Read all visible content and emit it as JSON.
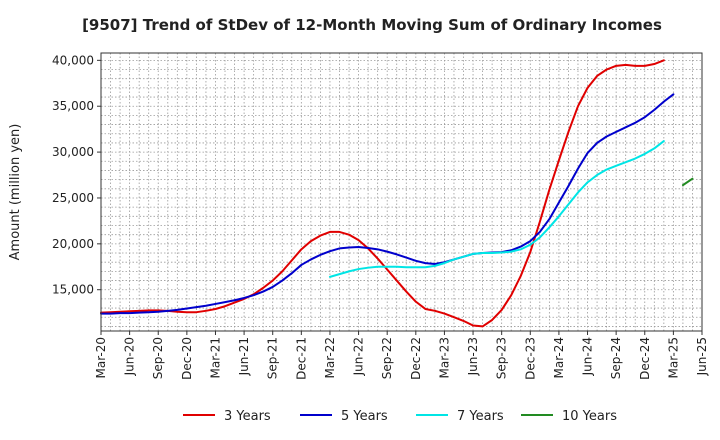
{
  "chart_data": {
    "type": "line",
    "title": "[9507]  Trend of StDev of 12-Month Moving Sum of Ordinary Incomes",
    "xlabel": "",
    "ylabel": "Amount (million yen)",
    "ylim": [
      10500,
      40800
    ],
    "yticks": [
      15000,
      20000,
      25000,
      30000,
      35000,
      40000
    ],
    "ytick_labels": [
      "15,000",
      "20,000",
      "25,000",
      "30,000",
      "35,000",
      "40,000"
    ],
    "xlim": [
      0,
      63
    ],
    "xticks": [
      0,
      3,
      6,
      9,
      12,
      15,
      18,
      21,
      24,
      27,
      30,
      33,
      36,
      39,
      42,
      45,
      48,
      51,
      54,
      57,
      60,
      63
    ],
    "xtick_labels": [
      "Mar-20",
      "Jun-20",
      "Sep-20",
      "Dec-20",
      "Mar-21",
      "Jun-21",
      "Sep-21",
      "Dec-21",
      "Mar-22",
      "Jun-22",
      "Sep-22",
      "Dec-22",
      "Mar-23",
      "Jun-23",
      "Sep-23",
      "Dec-23",
      "Mar-24",
      "Jun-24",
      "Sep-24",
      "Dec-24",
      "Mar-25",
      "Jun-25"
    ],
    "grid": true,
    "legend_position": "bottom",
    "series": [
      {
        "name": "3 Years",
        "color": "#e00000",
        "x_start": 0,
        "values": [
          12500,
          12550,
          12600,
          12650,
          12700,
          12750,
          12750,
          12700,
          12600,
          12550,
          12550,
          12700,
          12900,
          13200,
          13600,
          14000,
          14500,
          15200,
          16000,
          17000,
          18200,
          19400,
          20300,
          20900,
          21300,
          21300,
          21000,
          20400,
          19500,
          18400,
          17200,
          16000,
          14800,
          13700,
          12900,
          12700,
          12400,
          12000,
          11600,
          11100,
          11000,
          11700,
          12800,
          14400,
          16500,
          19100,
          22400,
          25900,
          29100,
          32200,
          35000,
          37000,
          38300,
          39000,
          39400,
          39500,
          39400,
          39400,
          39600,
          40000
        ]
      },
      {
        "name": "5 Years",
        "color": "#0000cc",
        "x_start": 0,
        "values": [
          12400,
          12400,
          12450,
          12450,
          12500,
          12550,
          12600,
          12700,
          12800,
          12950,
          13100,
          13250,
          13450,
          13650,
          13850,
          14100,
          14400,
          14800,
          15300,
          16000,
          16800,
          17700,
          18300,
          18800,
          19200,
          19500,
          19600,
          19650,
          19550,
          19400,
          19150,
          18850,
          18500,
          18150,
          17900,
          17800,
          18000,
          18300,
          18600,
          18900,
          19000,
          19050,
          19100,
          19300,
          19700,
          20300,
          21300,
          22700,
          24500,
          26300,
          28200,
          29900,
          31000,
          31700,
          32200,
          32700,
          33200,
          33800,
          34600,
          35500,
          36300
        ]
      },
      {
        "name": "7 Years",
        "color": "#00e5e5",
        "x_start": 24,
        "values": [
          16400,
          16700,
          17000,
          17250,
          17400,
          17500,
          17500,
          17500,
          17450,
          17450,
          17450,
          17600,
          17900,
          18300,
          18600,
          18900,
          19000,
          19000,
          19050,
          19150,
          19400,
          19900,
          20700,
          21800,
          23000,
          24300,
          25600,
          26700,
          27500,
          28100,
          28500,
          28900,
          29300,
          29800,
          30400,
          31200
        ]
      },
      {
        "name": "10 Years",
        "color": "#228b22",
        "x_start": 61,
        "values": [
          26400,
          27100
        ]
      }
    ]
  }
}
